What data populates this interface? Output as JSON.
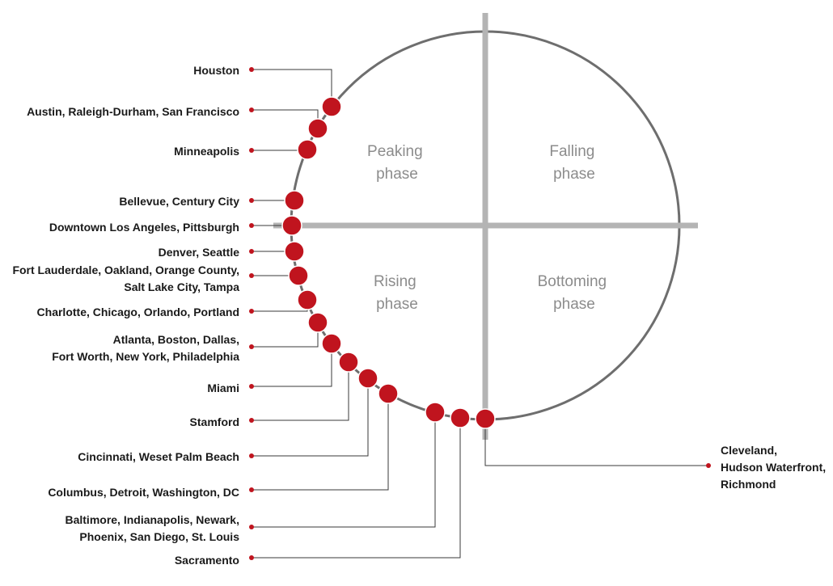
{
  "phases": {
    "peaking": [
      "Peaking",
      "phase"
    ],
    "falling": [
      "Falling",
      "phase"
    ],
    "rising": [
      "Rising",
      "phase"
    ],
    "bottoming": [
      "Bottoming",
      "phase"
    ]
  },
  "markets": [
    {
      "id": "houston",
      "lines": [
        "Houston"
      ]
    },
    {
      "id": "austin",
      "lines": [
        "Austin, Raleigh-Durham, San Francisco"
      ]
    },
    {
      "id": "minneapolis",
      "lines": [
        "Minneapolis"
      ]
    },
    {
      "id": "bellevue",
      "lines": [
        "Bellevue, Century City"
      ]
    },
    {
      "id": "downtown-la",
      "lines": [
        "Downtown Los Angeles, Pittsburgh"
      ]
    },
    {
      "id": "denver",
      "lines": [
        "Denver, Seattle"
      ]
    },
    {
      "id": "fort-lauderdale",
      "lines": [
        "Fort Lauderdale, Oakland, Orange County,",
        "Salt Lake City, Tampa"
      ]
    },
    {
      "id": "charlotte",
      "lines": [
        "Charlotte, Chicago, Orlando, Portland"
      ]
    },
    {
      "id": "atlanta",
      "lines": [
        "Atlanta, Boston, Dallas,",
        "Fort Worth, New York, Philadelphia"
      ]
    },
    {
      "id": "miami",
      "lines": [
        "Miami"
      ]
    },
    {
      "id": "stamford",
      "lines": [
        "Stamford"
      ]
    },
    {
      "id": "cincinnati",
      "lines": [
        "Cincinnati, Weset Palm Beach"
      ]
    },
    {
      "id": "columbus",
      "lines": [
        "Columbus, Detroit, Washington, DC"
      ]
    },
    {
      "id": "baltimore",
      "lines": [
        "Baltimore, Indianapolis, Newark,",
        "Phoenix, San Diego, St. Louis"
      ]
    },
    {
      "id": "sacramento",
      "lines": [
        "Sacramento"
      ]
    },
    {
      "id": "cleveland",
      "lines": [
        "Cleveland,",
        "Hudson Waterfront,",
        "Richmond"
      ]
    }
  ],
  "colors": {
    "marker": "#c0141e",
    "circle": "#6e6e6e",
    "axes": "#b4b4b4",
    "phase_text": "#8c8c8c",
    "label_text": "#1a1a1a"
  }
}
